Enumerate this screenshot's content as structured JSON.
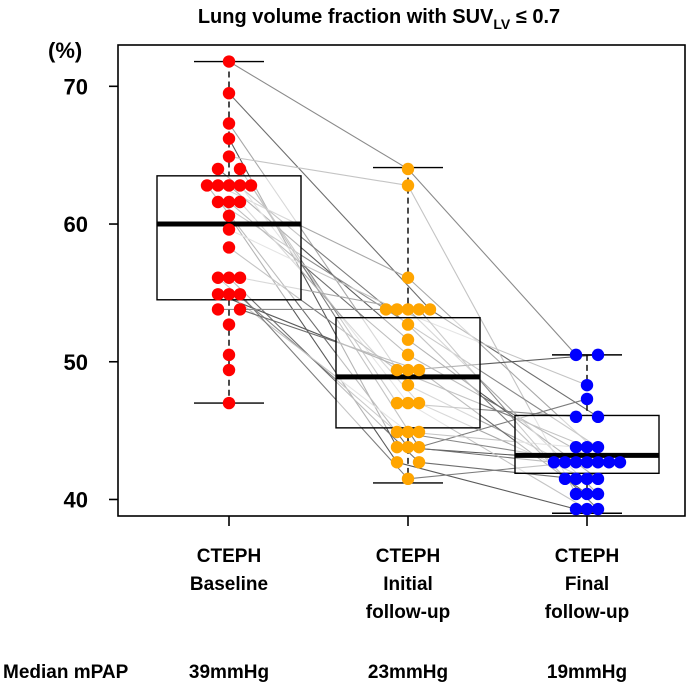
{
  "chart_data": {
    "type": "box-dot-paired",
    "title": "Lung volume fraction with SUV",
    "title_subscript": "LV",
    "title_suffix": " ≤ 0.7",
    "ylabel": "(%)",
    "ylim": [
      38.8,
      73.0
    ],
    "yticks": [
      40,
      50,
      60,
      70
    ],
    "groups": [
      {
        "label_lines": [
          "CTEPH",
          "Baseline"
        ],
        "color": "#ff0000",
        "box": {
          "q1": 54.5,
          "median": 60.0,
          "q3": 63.5,
          "whisker_low": 47.0,
          "whisker_high": 71.8
        },
        "points": [
          {
            "v": 71.8,
            "c": 0
          },
          {
            "v": 69.5,
            "c": 0
          },
          {
            "v": 67.3,
            "c": 0
          },
          {
            "v": 66.2,
            "c": 0
          },
          {
            "v": 64.9,
            "c": 0
          },
          {
            "v": 64.0,
            "c": -1
          },
          {
            "v": 64.0,
            "c": 1
          },
          {
            "v": 62.8,
            "c": -2
          },
          {
            "v": 62.8,
            "c": -1
          },
          {
            "v": 62.8,
            "c": 0
          },
          {
            "v": 62.8,
            "c": 1
          },
          {
            "v": 62.8,
            "c": 2
          },
          {
            "v": 61.6,
            "c": -1
          },
          {
            "v": 61.6,
            "c": 0
          },
          {
            "v": 61.6,
            "c": 1
          },
          {
            "v": 60.6,
            "c": 0
          },
          {
            "v": 59.6,
            "c": 0
          },
          {
            "v": 58.3,
            "c": 0
          },
          {
            "v": 56.1,
            "c": -1
          },
          {
            "v": 56.1,
            "c": 0
          },
          {
            "v": 56.1,
            "c": 1
          },
          {
            "v": 54.9,
            "c": -1
          },
          {
            "v": 54.9,
            "c": 0
          },
          {
            "v": 54.9,
            "c": 1
          },
          {
            "v": 53.8,
            "c": -1
          },
          {
            "v": 53.8,
            "c": 1
          },
          {
            "v": 52.7,
            "c": 0
          },
          {
            "v": 50.5,
            "c": 0
          },
          {
            "v": 49.4,
            "c": 0
          },
          {
            "v": 47.0,
            "c": 0
          }
        ]
      },
      {
        "label_lines": [
          "CTEPH",
          "Initial",
          "follow-up"
        ],
        "color": "#ffa500",
        "box": {
          "q1": 45.2,
          "median": 48.9,
          "q3": 53.2,
          "whisker_low": 41.2,
          "whisker_high": 64.1
        },
        "points": [
          {
            "v": 64.0,
            "c": 0
          },
          {
            "v": 62.8,
            "c": 0
          },
          {
            "v": 56.1,
            "c": 0
          },
          {
            "v": 53.8,
            "c": -2
          },
          {
            "v": 53.8,
            "c": -1
          },
          {
            "v": 53.8,
            "c": 0
          },
          {
            "v": 53.8,
            "c": 1
          },
          {
            "v": 53.8,
            "c": 2
          },
          {
            "v": 52.7,
            "c": 0
          },
          {
            "v": 51.6,
            "c": 0
          },
          {
            "v": 50.5,
            "c": 0
          },
          {
            "v": 49.4,
            "c": -1
          },
          {
            "v": 49.4,
            "c": 0
          },
          {
            "v": 49.4,
            "c": 1
          },
          {
            "v": 48.3,
            "c": 0
          },
          {
            "v": 47.0,
            "c": -1
          },
          {
            "v": 47.0,
            "c": 0
          },
          {
            "v": 47.0,
            "c": 1
          },
          {
            "v": 44.9,
            "c": -1
          },
          {
            "v": 44.9,
            "c": 0
          },
          {
            "v": 44.9,
            "c": 1
          },
          {
            "v": 43.8,
            "c": -1
          },
          {
            "v": 43.8,
            "c": 0
          },
          {
            "v": 43.8,
            "c": 1
          },
          {
            "v": 42.7,
            "c": -1
          },
          {
            "v": 42.7,
            "c": 1
          },
          {
            "v": 41.5,
            "c": 0
          }
        ]
      },
      {
        "label_lines": [
          "CTEPH",
          "Final",
          "follow-up"
        ],
        "color": "#0000ff",
        "box": {
          "q1": 41.9,
          "median": 43.2,
          "q3": 46.1,
          "whisker_low": 39.0,
          "whisker_high": 50.5
        },
        "points": [
          {
            "v": 50.5,
            "c": -1
          },
          {
            "v": 50.5,
            "c": 1
          },
          {
            "v": 48.3,
            "c": 0
          },
          {
            "v": 47.3,
            "c": 0
          },
          {
            "v": 46.0,
            "c": -1
          },
          {
            "v": 46.0,
            "c": 1
          },
          {
            "v": 43.8,
            "c": -1
          },
          {
            "v": 43.8,
            "c": 0
          },
          {
            "v": 43.8,
            "c": 1
          },
          {
            "v": 42.7,
            "c": -3
          },
          {
            "v": 42.7,
            "c": -2
          },
          {
            "v": 42.7,
            "c": -1
          },
          {
            "v": 42.7,
            "c": 0
          },
          {
            "v": 42.7,
            "c": 1
          },
          {
            "v": 42.7,
            "c": 2
          },
          {
            "v": 42.7,
            "c": 3
          },
          {
            "v": 41.5,
            "c": -2
          },
          {
            "v": 41.5,
            "c": -1
          },
          {
            "v": 41.5,
            "c": 0
          },
          {
            "v": 41.5,
            "c": 1
          },
          {
            "v": 40.4,
            "c": -1
          },
          {
            "v": 40.4,
            "c": 0
          },
          {
            "v": 40.4,
            "c": 1
          },
          {
            "v": 39.3,
            "c": -1
          },
          {
            "v": 39.3,
            "c": 0
          },
          {
            "v": 39.3,
            "c": 1
          }
        ]
      }
    ],
    "footer": {
      "label": "Median mPAP",
      "values": [
        "39mmHg",
        "23mmHg",
        "19mmHg"
      ]
    }
  }
}
